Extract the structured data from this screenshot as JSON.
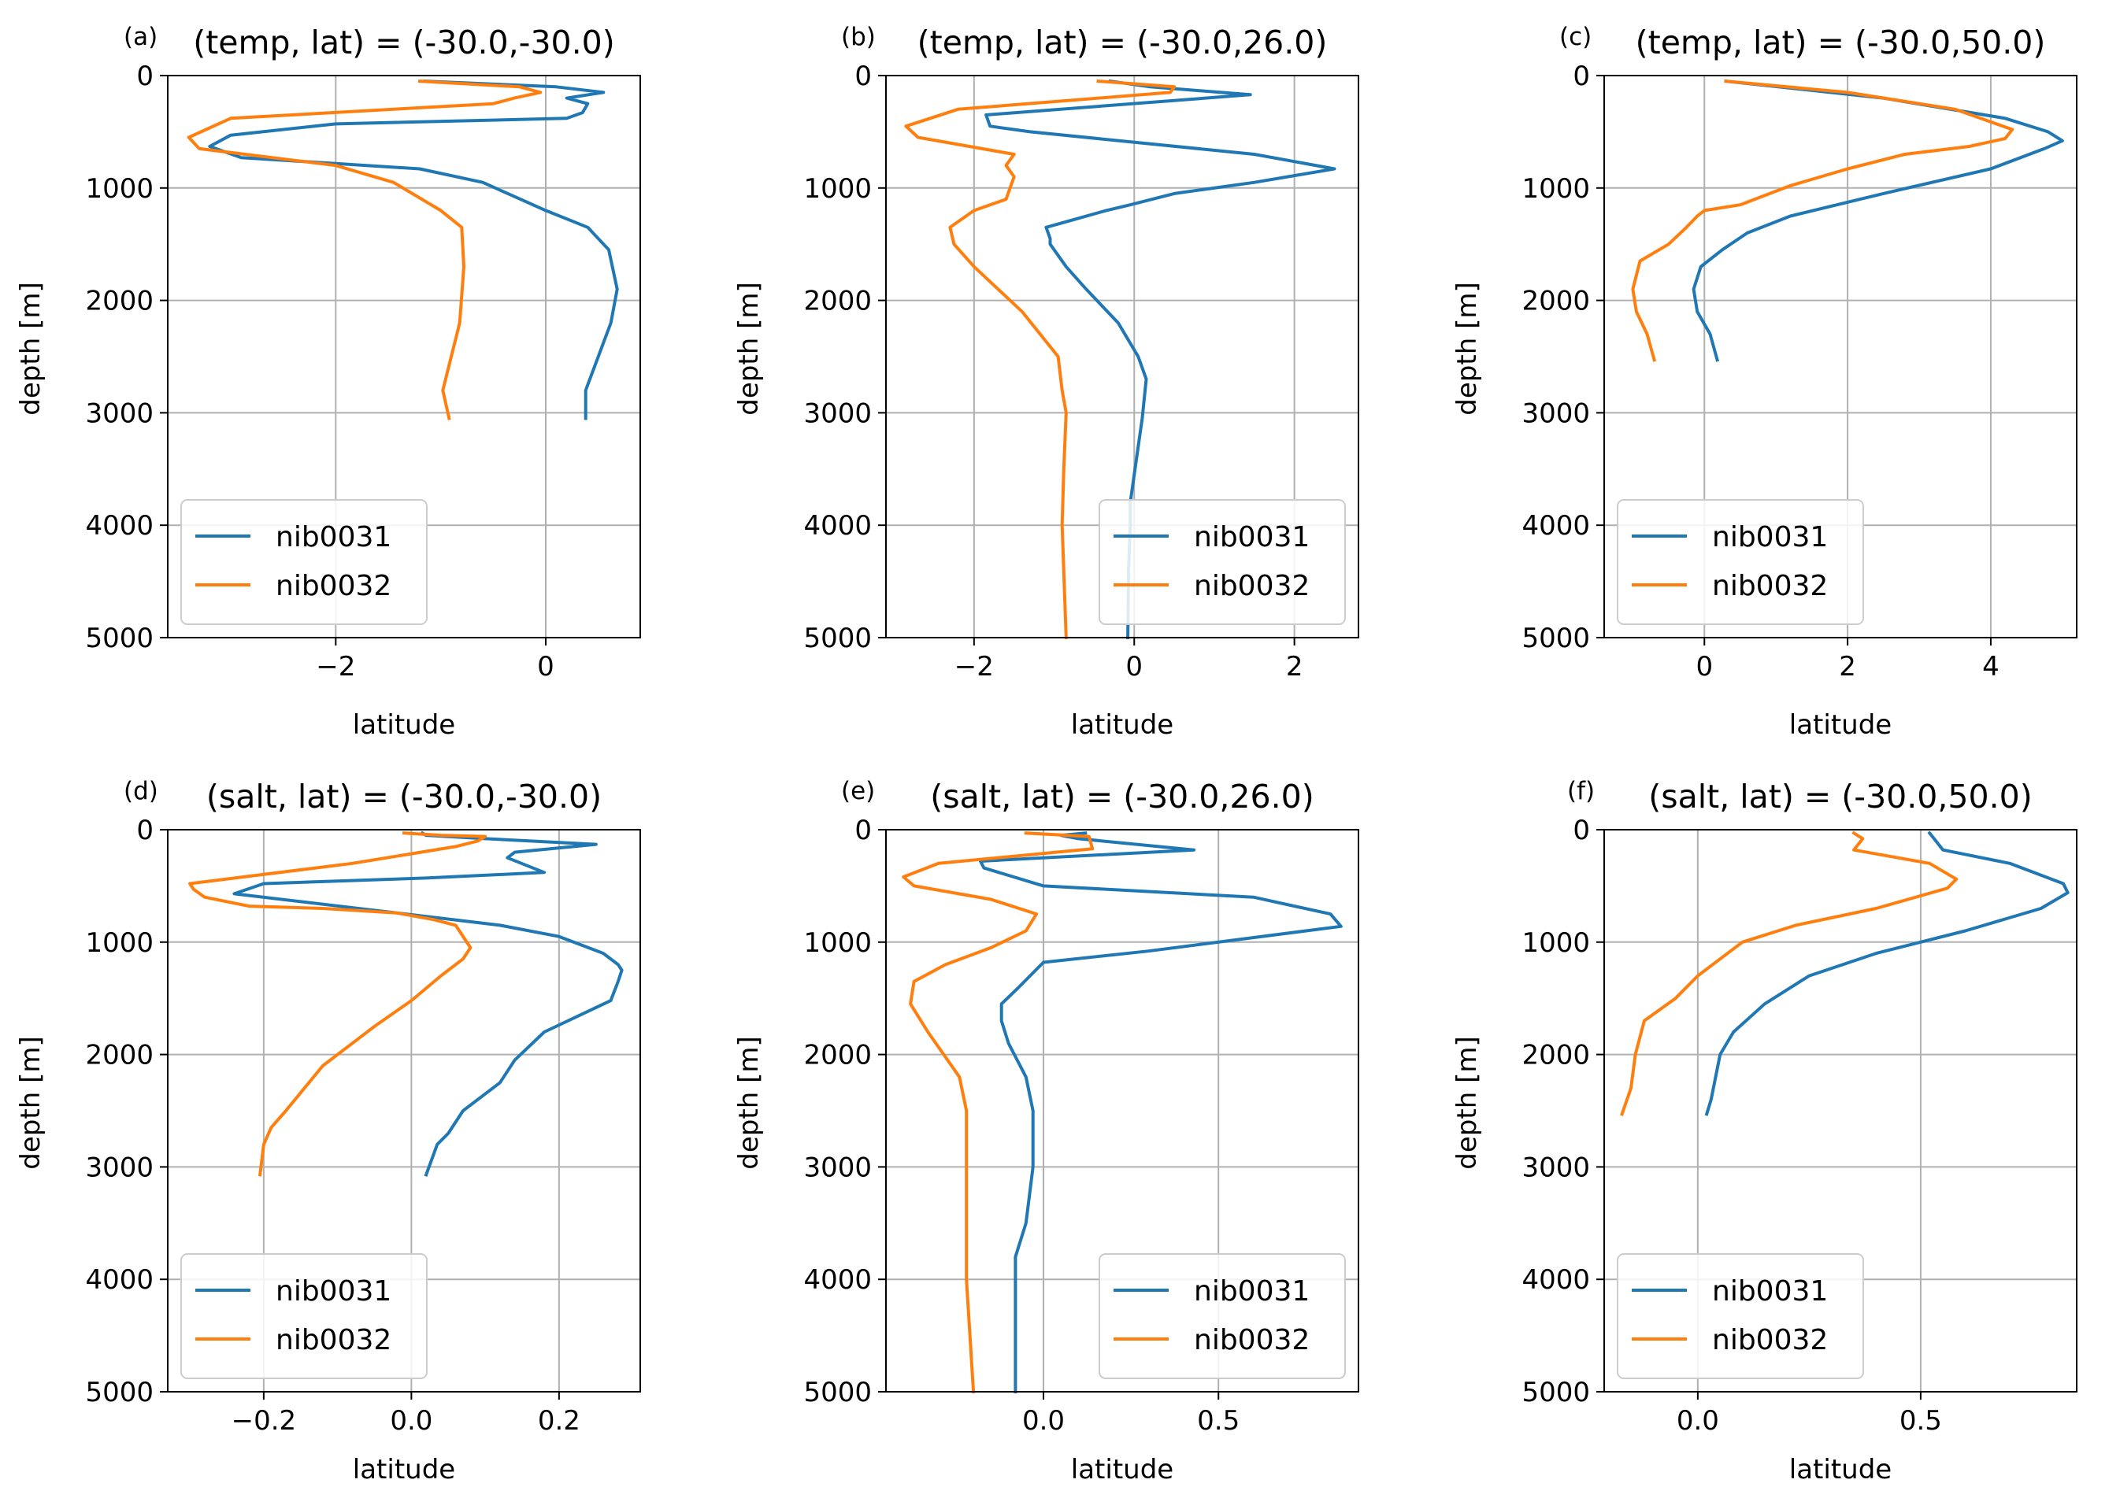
{
  "colors": {
    "nib0031": "#1f77b4",
    "nib0032": "#ff7f0e",
    "grid": "#b0b0b0"
  },
  "chart_data": [
    {
      "type": "line",
      "panel": "(a)",
      "title": "(temp, lat) = (-30.0,-30.0)",
      "xlabel": "latitude",
      "ylabel": "depth [m]",
      "xlim": [
        -3.6,
        0.9
      ],
      "ylim": [
        5000,
        0
      ],
      "xticks": [
        -2,
        0
      ],
      "yticks": [
        0,
        1000,
        2000,
        3000,
        4000,
        5000
      ],
      "grid": true,
      "legend_position": "lower-left",
      "series": [
        {
          "name": "nib0031",
          "x": [
            -1.15,
            0.1,
            0.55,
            0.2,
            0.4,
            0.35,
            0.2,
            -2.0,
            -3.0,
            -3.2,
            -2.9,
            -1.2,
            -0.6,
            0.0,
            0.4,
            0.6,
            0.68,
            0.62,
            0.38,
            0.38
          ],
          "y": [
            50,
            100,
            150,
            200,
            250,
            330,
            380,
            430,
            530,
            630,
            730,
            830,
            950,
            1200,
            1350,
            1550,
            1900,
            2200,
            2800,
            3050
          ]
        },
        {
          "name": "nib0032",
          "x": [
            -1.2,
            -0.25,
            -0.05,
            -0.3,
            -0.5,
            -3.0,
            -3.4,
            -3.3,
            -2.0,
            -1.45,
            -1.0,
            -0.8,
            -0.78,
            -0.82,
            -0.98,
            -0.92
          ],
          "y": [
            50,
            100,
            150,
            200,
            250,
            380,
            550,
            650,
            800,
            950,
            1200,
            1350,
            1700,
            2200,
            2800,
            3050
          ]
        }
      ]
    },
    {
      "type": "line",
      "panel": "(b)",
      "title": "(temp, lat) = (-30.0,26.0)",
      "xlabel": "latitude",
      "ylabel": "depth [m]",
      "xlim": [
        -3.1,
        2.8
      ],
      "ylim": [
        5000,
        0
      ],
      "xticks": [
        -2,
        0,
        2
      ],
      "yticks": [
        0,
        1000,
        2000,
        3000,
        4000,
        5000
      ],
      "grid": true,
      "legend_position": "lower-right",
      "series": [
        {
          "name": "nib0031",
          "x": [
            -0.3,
            0.2,
            1.45,
            -1.85,
            -1.8,
            -1.3,
            1.5,
            2.5,
            1.5,
            0.5,
            -0.05,
            -0.35,
            -1.1,
            -1.05,
            -1.05,
            -0.85,
            -0.6,
            -0.2,
            0.05,
            0.15,
            0.1,
            -0.05,
            -0.05,
            -0.07,
            -0.08
          ],
          "y": [
            50,
            100,
            170,
            350,
            450,
            500,
            700,
            830,
            950,
            1050,
            1150,
            1200,
            1350,
            1450,
            1500,
            1700,
            1900,
            2200,
            2500,
            2700,
            3050,
            3800,
            4000,
            4400,
            5000
          ]
        },
        {
          "name": "nib0032",
          "x": [
            -0.45,
            0.5,
            0.45,
            -2.2,
            -2.85,
            -2.7,
            -1.5,
            -1.6,
            -1.5,
            -1.55,
            -1.6,
            -2.0,
            -2.3,
            -2.25,
            -2.0,
            -1.4,
            -0.95,
            -0.9,
            -0.85,
            -0.88,
            -0.9,
            -0.85
          ],
          "y": [
            50,
            100,
            150,
            300,
            450,
            550,
            700,
            800,
            900,
            1000,
            1100,
            1200,
            1350,
            1500,
            1700,
            2100,
            2500,
            2800,
            3000,
            3500,
            4000,
            5000
          ]
        }
      ]
    },
    {
      "type": "line",
      "panel": "(c)",
      "title": "(temp, lat) = (-30.0,50.0)",
      "xlabel": "latitude",
      "ylabel": "depth [m]",
      "xlim": [
        -1.4,
        5.2
      ],
      "ylim": [
        5000,
        0
      ],
      "xticks": [
        0,
        2,
        4
      ],
      "yticks": [
        0,
        1000,
        2000,
        3000,
        4000,
        5000
      ],
      "grid": true,
      "legend_position": "lower-left",
      "series": [
        {
          "name": "nib0031",
          "x": [
            0.3,
            2.5,
            4.2,
            4.8,
            5.0,
            4.75,
            4.0,
            2.5,
            1.2,
            0.6,
            0.25,
            -0.05,
            -0.15,
            -0.1,
            0.08,
            0.18
          ],
          "y": [
            50,
            200,
            380,
            500,
            580,
            650,
            830,
            1050,
            1250,
            1400,
            1550,
            1700,
            1900,
            2100,
            2300,
            2530
          ]
        },
        {
          "name": "nib0032",
          "x": [
            0.3,
            2.0,
            3.5,
            4.3,
            4.2,
            3.7,
            2.8,
            2.0,
            1.2,
            0.5,
            0.0,
            -0.1,
            -0.25,
            -0.5,
            -0.9,
            -1.0,
            -0.95,
            -0.8,
            -0.7
          ],
          "y": [
            50,
            150,
            300,
            480,
            560,
            630,
            700,
            830,
            980,
            1150,
            1200,
            1250,
            1350,
            1500,
            1650,
            1900,
            2100,
            2300,
            2530
          ]
        }
      ]
    },
    {
      "type": "line",
      "panel": "(d)",
      "title": "(salt, lat) = (-30.0,-30.0)",
      "xlabel": "latitude",
      "ylabel": "depth [m]",
      "xlim": [
        -0.33,
        0.31
      ],
      "ylim": [
        5000,
        0
      ],
      "xticks": [
        -0.2,
        0.0,
        0.2
      ],
      "yticks": [
        0,
        1000,
        2000,
        3000,
        4000,
        5000
      ],
      "grid": true,
      "legend_position": "lower-left",
      "series": [
        {
          "name": "nib0031",
          "x": [
            0.015,
            0.02,
            0.1,
            0.25,
            0.14,
            0.13,
            0.18,
            0.02,
            -0.2,
            -0.24,
            -0.02,
            0.12,
            0.2,
            0.26,
            0.28,
            0.285,
            0.28,
            0.27,
            0.18,
            0.14,
            0.12,
            0.07,
            0.05,
            0.035,
            0.02
          ],
          "y": [
            30,
            50,
            80,
            130,
            200,
            250,
            380,
            430,
            480,
            570,
            740,
            850,
            950,
            1100,
            1200,
            1250,
            1350,
            1520,
            1800,
            2050,
            2250,
            2500,
            2700,
            2800,
            3070
          ]
        },
        {
          "name": "nib0032",
          "x": [
            -0.01,
            0.04,
            0.1,
            0.09,
            0.06,
            -0.08,
            -0.3,
            -0.295,
            -0.28,
            -0.22,
            -0.12,
            -0.02,
            0.03,
            0.06,
            0.08,
            0.07,
            0.04,
            0.0,
            -0.05,
            -0.08,
            -0.12,
            -0.17,
            -0.19,
            -0.2,
            -0.205
          ],
          "y": [
            30,
            50,
            60,
            100,
            150,
            300,
            480,
            530,
            600,
            680,
            700,
            740,
            800,
            850,
            1050,
            1150,
            1300,
            1520,
            1750,
            1900,
            2100,
            2500,
            2650,
            2800,
            3070
          ]
        }
      ]
    },
    {
      "type": "line",
      "panel": "(e)",
      "title": "(salt, lat) = (-30.0,26.0)",
      "xlabel": "latitude",
      "ylabel": "depth [m]",
      "xlim": [
        -0.45,
        0.9
      ],
      "ylim": [
        5000,
        0
      ],
      "xticks": [
        0.0,
        0.5
      ],
      "yticks": [
        0,
        1000,
        2000,
        3000,
        4000,
        5000
      ],
      "grid": true,
      "legend_position": "lower-right",
      "series": [
        {
          "name": "nib0031",
          "x": [
            0.12,
            0.05,
            0.1,
            0.43,
            -0.18,
            -0.17,
            0.0,
            0.6,
            0.82,
            0.85,
            0.3,
            0.0,
            -0.07,
            -0.12,
            -0.12,
            -0.1,
            -0.05,
            -0.03,
            -0.03,
            -0.05,
            -0.08,
            -0.08,
            -0.08,
            -0.08,
            -0.08
          ],
          "y": [
            30,
            50,
            80,
            180,
            280,
            340,
            500,
            600,
            750,
            860,
            1080,
            1180,
            1400,
            1550,
            1700,
            1900,
            2200,
            2500,
            3000,
            3500,
            3800,
            4000,
            4200,
            4600,
            5000
          ]
        },
        {
          "name": "nib0032",
          "x": [
            -0.05,
            0.13,
            0.14,
            -0.3,
            -0.4,
            -0.37,
            -0.15,
            -0.02,
            -0.05,
            -0.15,
            -0.28,
            -0.37,
            -0.38,
            -0.33,
            -0.24,
            -0.22,
            -0.22,
            -0.22,
            -0.2
          ],
          "y": [
            30,
            60,
            170,
            300,
            420,
            500,
            620,
            750,
            900,
            1050,
            1200,
            1350,
            1550,
            1800,
            2200,
            2500,
            3000,
            4000,
            5000
          ]
        }
      ]
    },
    {
      "type": "line",
      "panel": "(f)",
      "title": "(salt, lat) = (-30.0,50.0)",
      "xlabel": "latitude",
      "ylabel": "depth [m]",
      "xlim": [
        -0.21,
        0.85
      ],
      "ylim": [
        5000,
        0
      ],
      "xticks": [
        0.0,
        0.5
      ],
      "yticks": [
        0,
        1000,
        2000,
        3000,
        4000,
        5000
      ],
      "grid": true,
      "legend_position": "lower-left",
      "series": [
        {
          "name": "nib0031",
          "x": [
            0.52,
            0.53,
            0.55,
            0.7,
            0.82,
            0.83,
            0.77,
            0.6,
            0.4,
            0.25,
            0.15,
            0.08,
            0.05,
            0.04,
            0.03,
            0.02
          ],
          "y": [
            30,
            80,
            180,
            300,
            480,
            560,
            700,
            900,
            1100,
            1300,
            1550,
            1800,
            2000,
            2200,
            2400,
            2530
          ]
        },
        {
          "name": "nib0032",
          "x": [
            0.35,
            0.37,
            0.35,
            0.52,
            0.58,
            0.56,
            0.4,
            0.22,
            0.1,
            0.05,
            0.0,
            -0.05,
            -0.12,
            -0.14,
            -0.15,
            -0.17
          ],
          "y": [
            30,
            80,
            180,
            300,
            440,
            520,
            700,
            850,
            1000,
            1150,
            1300,
            1500,
            1700,
            2000,
            2300,
            2530
          ]
        }
      ]
    }
  ]
}
